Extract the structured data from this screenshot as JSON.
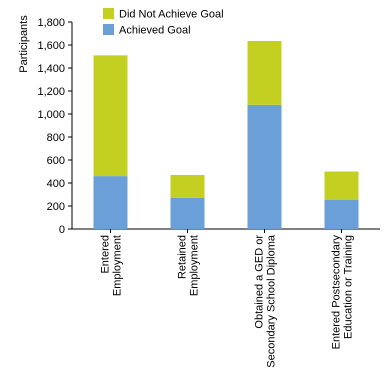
{
  "chart_data": {
    "type": "bar",
    "stacked": true,
    "categories": [
      [
        "Entered",
        "Employment"
      ],
      [
        "Retained",
        "Employment"
      ],
      [
        "Obtained a GED or",
        "Secondary School Diploma"
      ],
      [
        "Entered Postsecondary",
        "Education or Training"
      ]
    ],
    "series": [
      {
        "name": "Achieved Goal",
        "color": "#6a9fd8",
        "values": [
          460,
          270,
          1080,
          255
        ]
      },
      {
        "name": "Did Not Achieve Goal",
        "color": "#c3d021",
        "values": [
          1050,
          200,
          555,
          245
        ]
      }
    ],
    "ylabel": "Participants",
    "ylim": [
      0,
      1800
    ],
    "yticks": [
      0,
      200,
      400,
      600,
      800,
      1000,
      1200,
      1400,
      1600,
      1800
    ],
    "ytick_labels": [
      "0",
      "200",
      "400",
      "600",
      "800",
      "1,000",
      "1,200",
      "1,400",
      "1,600",
      "1,800"
    ],
    "grid": false,
    "legend": {
      "position": "top-center",
      "order": [
        "Did Not Achieve Goal",
        "Achieved Goal"
      ]
    }
  }
}
